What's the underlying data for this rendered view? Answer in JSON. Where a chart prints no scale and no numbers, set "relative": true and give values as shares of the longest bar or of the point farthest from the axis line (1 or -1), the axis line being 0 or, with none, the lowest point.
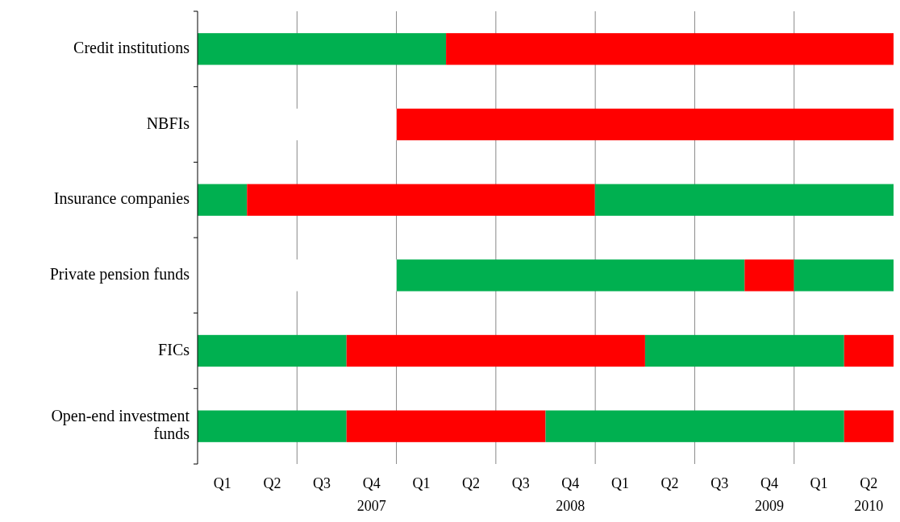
{
  "chart_data": {
    "type": "bar",
    "orientation": "horizontal",
    "relative": true,
    "stacked": true,
    "categories": [
      "Credit institutions",
      "NBFIs",
      "Insurance companies",
      "Private pension funds",
      "FICs",
      "Open-end investment funds"
    ],
    "series": [
      {
        "values": [
          null,
          0.286,
          null,
          0.286,
          null,
          null
        ],
        "colors": [
          null,
          "#ffffff",
          null,
          "#ffffff",
          null,
          null
        ]
      },
      {
        "values": [
          0.357,
          0.714,
          0.071,
          0.5,
          0.214,
          0.214
        ],
        "colors": [
          "#00b050",
          "#ff0000",
          "#00b050",
          "#00b050",
          "#00b050",
          "#00b050"
        ]
      },
      {
        "values": [
          0.643,
          null,
          0.5,
          0.071,
          0.429,
          0.286
        ],
        "colors": [
          "#ff0000",
          null,
          "#ff0000",
          "#ff0000",
          "#ff0000",
          "#ff0000"
        ]
      },
      {
        "values": [
          null,
          null,
          0.429,
          0.143,
          0.286,
          0.429
        ],
        "colors": [
          null,
          null,
          "#00b050",
          "#00b050",
          "#00b050",
          "#00b050"
        ]
      },
      {
        "values": [
          null,
          null,
          null,
          null,
          0.071,
          0.071
        ],
        "colors": [
          null,
          null,
          null,
          null,
          "#ff0000",
          "#ff0000"
        ]
      }
    ],
    "annotations": [
      "Q1",
      "Q2",
      "Q3",
      "Q4\n2007",
      "Q1",
      "Q2",
      "Q3",
      "Q4\n2008",
      "Q1",
      "Q2",
      "Q3",
      "Q4\n2009",
      "Q1",
      "Q2\n2010"
    ],
    "grid": "x"
  }
}
